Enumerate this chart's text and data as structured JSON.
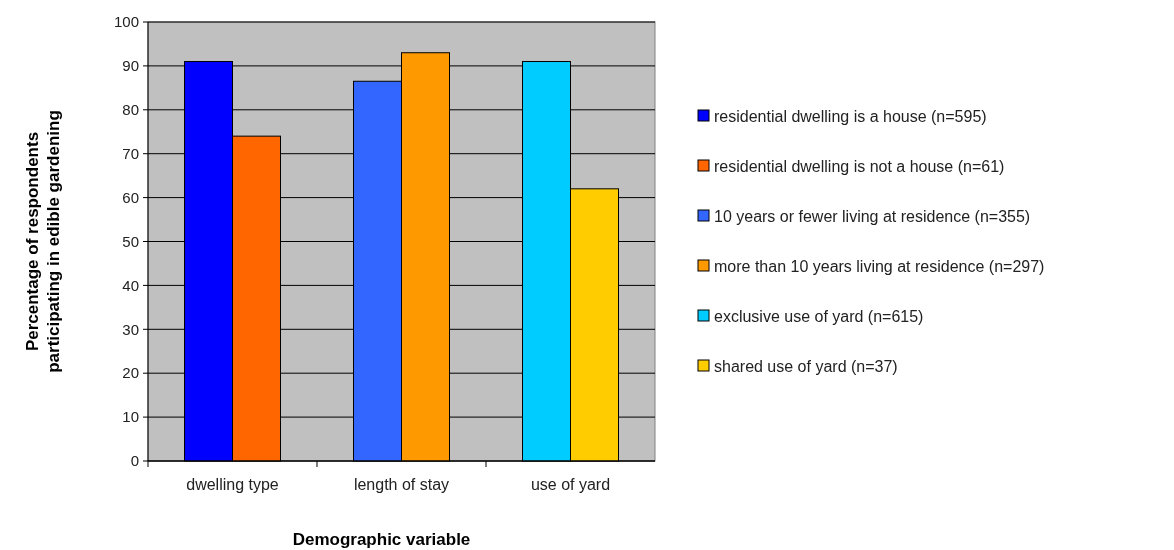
{
  "chart_data": {
    "type": "bar",
    "xlabel": "Demographic variable",
    "ylabel": "Percentage of respondents\nparticipating in edible gardening",
    "categories": [
      "dwelling type",
      "length of stay",
      "use of yard"
    ],
    "series": [
      {
        "name": "residential dwelling is a house (n=595)",
        "color": "#0000ff",
        "values": [
          91,
          null,
          null
        ]
      },
      {
        "name": "residential dwelling is not a house (n=61)",
        "color": "#ff6600",
        "values": [
          74,
          null,
          null
        ]
      },
      {
        "name": "10 years or fewer living at residence (n=355)",
        "color": "#3366ff",
        "values": [
          null,
          86.5,
          null
        ]
      },
      {
        "name": "more than 10 years living at residence (n=297)",
        "color": "#ff9900",
        "values": [
          null,
          93,
          null
        ]
      },
      {
        "name": "exclusive use of yard (n=615)",
        "color": "#00ccff",
        "values": [
          null,
          null,
          91
        ]
      },
      {
        "name": "shared use of yard (n=37)",
        "color": "#ffcc00",
        "values": [
          null,
          null,
          62
        ]
      }
    ],
    "ylim": [
      0,
      100
    ],
    "yticks": [
      0,
      10,
      20,
      30,
      40,
      50,
      60,
      70,
      80,
      90,
      100
    ],
    "grid": "y",
    "legend": "right"
  }
}
